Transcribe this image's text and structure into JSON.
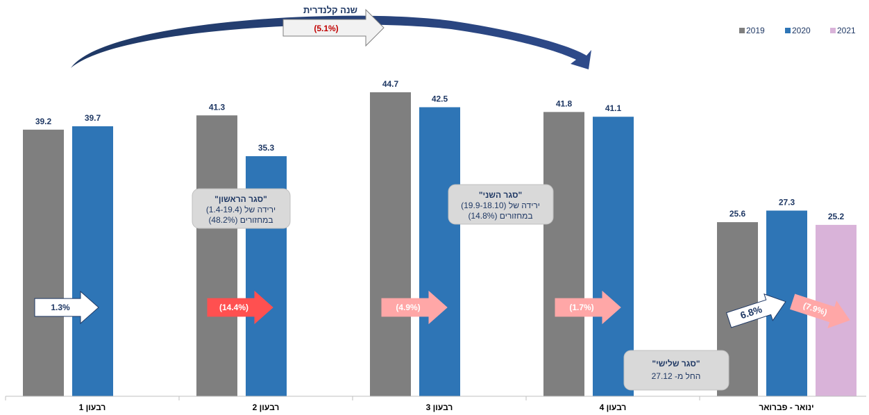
{
  "chart_data": {
    "type": "bar",
    "categories": [
      "רבעון 1",
      "רבעון 2",
      "רבעון 3",
      "רבעון 4",
      "ינואר - פברואר"
    ],
    "series": [
      {
        "name": "2019",
        "values": [
          39.2,
          41.3,
          44.7,
          41.8,
          25.6
        ],
        "color": "#7F7F7F"
      },
      {
        "name": "2020",
        "values": [
          39.7,
          35.3,
          42.5,
          41.1,
          27.3
        ],
        "color": "#2E75B6"
      },
      {
        "name": "2021",
        "values": [
          null,
          null,
          null,
          null,
          25.2
        ],
        "color": "#D9B3D9"
      }
    ],
    "ylim": [
      0,
      47
    ],
    "legend_position": "top-right",
    "value_labels": [
      [
        "39.2",
        "39.7"
      ],
      [
        "41.3",
        "35.3"
      ],
      [
        "44.7",
        "42.5"
      ],
      [
        "41.8",
        "41.1"
      ],
      [
        "25.6",
        "27.3",
        "25.2"
      ]
    ],
    "change_arrows": [
      {
        "label": "1.3%",
        "fill": "#FFFFFF",
        "text_color": "#1F3864"
      },
      {
        "label": "(14.4%)",
        "fill": "#FF5050",
        "text_color": "#FFFFFF"
      },
      {
        "label": "(4.9%)",
        "fill": "#FFA7A7",
        "text_color": "#FFFFFF"
      },
      {
        "label": "(1.7%)",
        "fill": "#FFA7A7",
        "text_color": "#FFFFFF"
      },
      {
        "label": "6.8%",
        "fill": "#FFFFFF",
        "text_color": "#1F3864"
      },
      {
        "label": "(7.9%)",
        "fill": "#FFA7A7",
        "text_color": "#FFFFFF"
      }
    ],
    "annual_arrow": {
      "title": "שנה קלנדרית",
      "value": "(5.1%)",
      "value_color": "#C00000"
    },
    "annotations": [
      {
        "title": "\"סגר הראשון\"",
        "line1": "(1.4-19.4) ירידה של",
        "line2": "(48.2%) במחזורים"
      },
      {
        "title": "\"סגר השני\"",
        "line1": "(19.9-18.10) ירידה של",
        "line2": "(14.8%) במחזורים"
      },
      {
        "title": "\"סגר שלישי\"",
        "line1": "החל מ- 27.12"
      }
    ]
  }
}
